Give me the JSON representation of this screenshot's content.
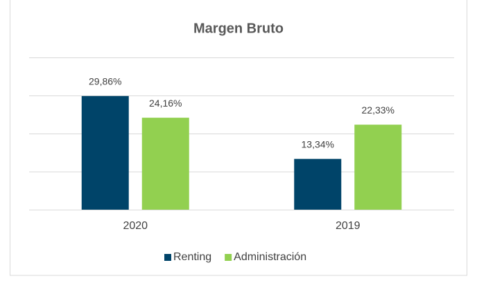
{
  "chart_data": {
    "type": "bar",
    "title": "Margen Bruto",
    "categories": [
      "2020",
      "2019"
    ],
    "series": [
      {
        "name": "Renting",
        "color": "#004469",
        "values": [
          29.86,
          13.34
        ],
        "value_labels": [
          "29,86%",
          "13,34%"
        ]
      },
      {
        "name": "Administración",
        "color": "#92d050",
        "values": [
          24.16,
          22.33
        ],
        "value_labels": [
          "24,16%",
          "22,33%"
        ]
      }
    ],
    "ylim": [
      0,
      40
    ],
    "yticks": [
      0,
      10,
      20,
      30,
      40
    ],
    "grid": true,
    "legend": "bottom"
  }
}
